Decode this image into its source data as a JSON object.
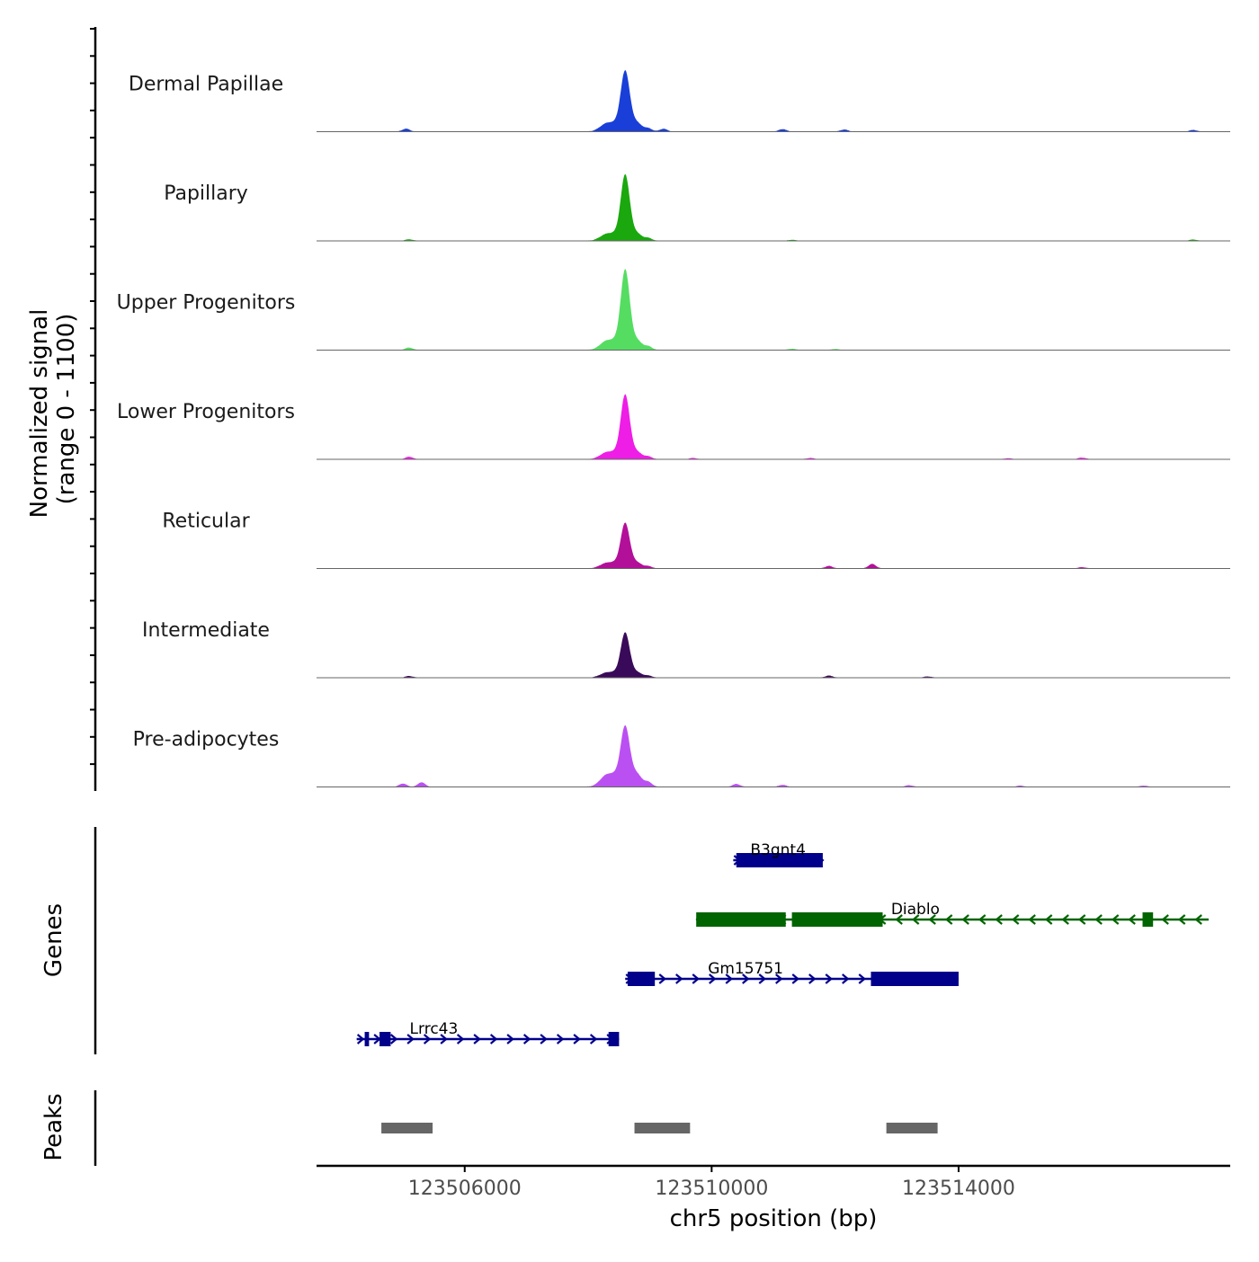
{
  "chart_data": {
    "type": "coverage",
    "title": "",
    "xlabel": "chr5 position (bp)",
    "ylabel_line1": "Normalized signal",
    "ylabel_line2": "(range 0 - 1100)",
    "ylim": [
      0,
      1100
    ],
    "xlim": [
      123503600,
      123518400
    ],
    "x_ticks": [
      123506000,
      123510000,
      123514000
    ],
    "x_tick_labels": [
      "123506000",
      "123510000",
      "123514000"
    ],
    "peak_center": 123508600,
    "tracks": [
      {
        "name": "Dermal Papillae",
        "color": "#1a3fd8",
        "peak": 660,
        "shoulder": 180,
        "bumps": [
          [
            123505050,
            35
          ],
          [
            123509220,
            35
          ],
          [
            123511150,
            30
          ],
          [
            123512150,
            25
          ],
          [
            123517800,
            20
          ]
        ]
      },
      {
        "name": "Papillary",
        "color": "#1aa80e",
        "peak": 740,
        "shoulder": 150,
        "bumps": [
          [
            123505100,
            18
          ],
          [
            123511300,
            12
          ],
          [
            123517800,
            15
          ]
        ]
      },
      {
        "name": "Upper Progenitors",
        "color": "#55dd62",
        "peak": 890,
        "shoulder": 200,
        "bumps": [
          [
            123505100,
            30
          ],
          [
            123511300,
            15
          ],
          [
            123512000,
            12
          ]
        ]
      },
      {
        "name": "Lower Progenitors",
        "color": "#ee1ee6",
        "peak": 720,
        "shoulder": 150,
        "bumps": [
          [
            123505100,
            30
          ],
          [
            123509700,
            15
          ],
          [
            123511600,
            15
          ],
          [
            123514800,
            12
          ],
          [
            123516000,
            20
          ]
        ]
      },
      {
        "name": "Reticular",
        "color": "#b3109a",
        "peak": 500,
        "shoulder": 120,
        "bumps": [
          [
            123511900,
            30
          ],
          [
            123512600,
            55
          ],
          [
            123516000,
            15
          ]
        ]
      },
      {
        "name": "Intermediate",
        "color": "#3a0a5a",
        "peak": 500,
        "shoulder": 110,
        "bumps": [
          [
            123505100,
            20
          ],
          [
            123511900,
            25
          ],
          [
            123513500,
            15
          ]
        ]
      },
      {
        "name": "Pre-adipocytes",
        "color": "#bb50f2",
        "peak": 620,
        "shoulder": 260,
        "bumps": [
          [
            123505000,
            40
          ],
          [
            123505300,
            55
          ],
          [
            123510400,
            35
          ],
          [
            123511150,
            25
          ],
          [
            123513200,
            20
          ],
          [
            123515000,
            15
          ],
          [
            123517000,
            15
          ]
        ]
      }
    ],
    "genes": [
      {
        "name": "B3gnt4",
        "strand": "+",
        "color": "#00008b",
        "start": 123510350,
        "end": 123511800,
        "exons": [
          [
            123510400,
            123511800
          ]
        ]
      },
      {
        "name": "Diablo",
        "strand": "-",
        "color": "#006400",
        "start": 123509750,
        "end": 123518050,
        "exons": [
          [
            123509750,
            123511200
          ],
          [
            123511300,
            123512770
          ],
          [
            123516980,
            123517150
          ]
        ]
      },
      {
        "name": "Gm15751",
        "strand": "+",
        "color": "#00008b",
        "start": 123508600,
        "end": 123514000,
        "exons": [
          [
            123508640,
            123509080
          ],
          [
            123512580,
            123514000
          ]
        ]
      },
      {
        "name": "Lrrc43",
        "strand": "+",
        "color": "#00008b",
        "start": 123504250,
        "end": 123508500,
        "exons": [
          [
            123504380,
            123504450
          ],
          [
            123504620,
            123504800
          ],
          [
            123508330,
            123508500
          ]
        ]
      }
    ],
    "peaks": [
      [
        123504650,
        123505480
      ],
      [
        123508750,
        123509650
      ],
      [
        123512830,
        123513660
      ]
    ],
    "panel_labels": {
      "genes": "Genes",
      "peaks": "Peaks"
    }
  }
}
